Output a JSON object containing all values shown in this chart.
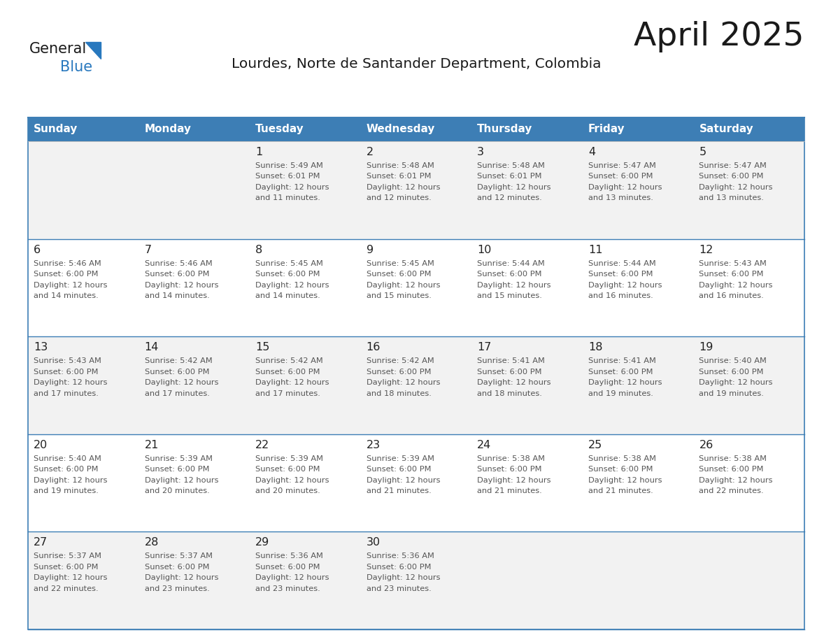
{
  "title": "April 2025",
  "subtitle": "Lourdes, Norte de Santander Department, Colombia",
  "header_color": "#3D7EB5",
  "header_text_color": "#FFFFFF",
  "cell_bg_odd": "#F2F2F2",
  "cell_bg_even": "#FFFFFF",
  "separator_color": "#3D7EB5",
  "text_color": "#555555",
  "number_color": "#222222",
  "title_color": "#1a1a1a",
  "day_names": [
    "Sunday",
    "Monday",
    "Tuesday",
    "Wednesday",
    "Thursday",
    "Friday",
    "Saturday"
  ],
  "calendar_data": [
    [
      {
        "day": null,
        "sunrise": null,
        "sunset": null,
        "daylight": null
      },
      {
        "day": null,
        "sunrise": null,
        "sunset": null,
        "daylight": null
      },
      {
        "day": 1,
        "sunrise": "5:49 AM",
        "sunset": "6:01 PM",
        "daylight": "12 hours\nand 11 minutes."
      },
      {
        "day": 2,
        "sunrise": "5:48 AM",
        "sunset": "6:01 PM",
        "daylight": "12 hours\nand 12 minutes."
      },
      {
        "day": 3,
        "sunrise": "5:48 AM",
        "sunset": "6:01 PM",
        "daylight": "12 hours\nand 12 minutes."
      },
      {
        "day": 4,
        "sunrise": "5:47 AM",
        "sunset": "6:00 PM",
        "daylight": "12 hours\nand 13 minutes."
      },
      {
        "day": 5,
        "sunrise": "5:47 AM",
        "sunset": "6:00 PM",
        "daylight": "12 hours\nand 13 minutes."
      }
    ],
    [
      {
        "day": 6,
        "sunrise": "5:46 AM",
        "sunset": "6:00 PM",
        "daylight": "12 hours\nand 14 minutes."
      },
      {
        "day": 7,
        "sunrise": "5:46 AM",
        "sunset": "6:00 PM",
        "daylight": "12 hours\nand 14 minutes."
      },
      {
        "day": 8,
        "sunrise": "5:45 AM",
        "sunset": "6:00 PM",
        "daylight": "12 hours\nand 14 minutes."
      },
      {
        "day": 9,
        "sunrise": "5:45 AM",
        "sunset": "6:00 PM",
        "daylight": "12 hours\nand 15 minutes."
      },
      {
        "day": 10,
        "sunrise": "5:44 AM",
        "sunset": "6:00 PM",
        "daylight": "12 hours\nand 15 minutes."
      },
      {
        "day": 11,
        "sunrise": "5:44 AM",
        "sunset": "6:00 PM",
        "daylight": "12 hours\nand 16 minutes."
      },
      {
        "day": 12,
        "sunrise": "5:43 AM",
        "sunset": "6:00 PM",
        "daylight": "12 hours\nand 16 minutes."
      }
    ],
    [
      {
        "day": 13,
        "sunrise": "5:43 AM",
        "sunset": "6:00 PM",
        "daylight": "12 hours\nand 17 minutes."
      },
      {
        "day": 14,
        "sunrise": "5:42 AM",
        "sunset": "6:00 PM",
        "daylight": "12 hours\nand 17 minutes."
      },
      {
        "day": 15,
        "sunrise": "5:42 AM",
        "sunset": "6:00 PM",
        "daylight": "12 hours\nand 17 minutes."
      },
      {
        "day": 16,
        "sunrise": "5:42 AM",
        "sunset": "6:00 PM",
        "daylight": "12 hours\nand 18 minutes."
      },
      {
        "day": 17,
        "sunrise": "5:41 AM",
        "sunset": "6:00 PM",
        "daylight": "12 hours\nand 18 minutes."
      },
      {
        "day": 18,
        "sunrise": "5:41 AM",
        "sunset": "6:00 PM",
        "daylight": "12 hours\nand 19 minutes."
      },
      {
        "day": 19,
        "sunrise": "5:40 AM",
        "sunset": "6:00 PM",
        "daylight": "12 hours\nand 19 minutes."
      }
    ],
    [
      {
        "day": 20,
        "sunrise": "5:40 AM",
        "sunset": "6:00 PM",
        "daylight": "12 hours\nand 19 minutes."
      },
      {
        "day": 21,
        "sunrise": "5:39 AM",
        "sunset": "6:00 PM",
        "daylight": "12 hours\nand 20 minutes."
      },
      {
        "day": 22,
        "sunrise": "5:39 AM",
        "sunset": "6:00 PM",
        "daylight": "12 hours\nand 20 minutes."
      },
      {
        "day": 23,
        "sunrise": "5:39 AM",
        "sunset": "6:00 PM",
        "daylight": "12 hours\nand 21 minutes."
      },
      {
        "day": 24,
        "sunrise": "5:38 AM",
        "sunset": "6:00 PM",
        "daylight": "12 hours\nand 21 minutes."
      },
      {
        "day": 25,
        "sunrise": "5:38 AM",
        "sunset": "6:00 PM",
        "daylight": "12 hours\nand 21 minutes."
      },
      {
        "day": 26,
        "sunrise": "5:38 AM",
        "sunset": "6:00 PM",
        "daylight": "12 hours\nand 22 minutes."
      }
    ],
    [
      {
        "day": 27,
        "sunrise": "5:37 AM",
        "sunset": "6:00 PM",
        "daylight": "12 hours\nand 22 minutes."
      },
      {
        "day": 28,
        "sunrise": "5:37 AM",
        "sunset": "6:00 PM",
        "daylight": "12 hours\nand 23 minutes."
      },
      {
        "day": 29,
        "sunrise": "5:36 AM",
        "sunset": "6:00 PM",
        "daylight": "12 hours\nand 23 minutes."
      },
      {
        "day": 30,
        "sunrise": "5:36 AM",
        "sunset": "6:00 PM",
        "daylight": "12 hours\nand 23 minutes."
      },
      {
        "day": null,
        "sunrise": null,
        "sunset": null,
        "daylight": null
      },
      {
        "day": null,
        "sunrise": null,
        "sunset": null,
        "daylight": null
      },
      {
        "day": null,
        "sunrise": null,
        "sunset": null,
        "daylight": null
      }
    ]
  ],
  "logo_text1": "General",
  "logo_text2": "Blue",
  "logo_color1": "#1a1a1a",
  "logo_color2": "#2878BE",
  "logo_triangle_color": "#2878BE",
  "fig_width": 11.88,
  "fig_height": 9.18,
  "dpi": 100
}
